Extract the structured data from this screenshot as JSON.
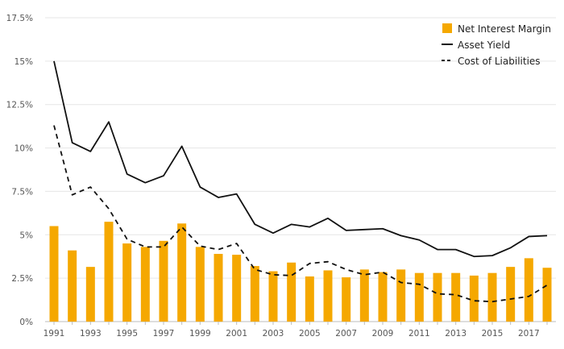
{
  "chart_data": {
    "type": "bar",
    "title": "",
    "xlabel": "",
    "ylabel": "",
    "ylim": [
      0,
      17.5
    ],
    "y_ticks": [
      0,
      2.5,
      5,
      7.5,
      10,
      12.5,
      15,
      17.5
    ],
    "y_tick_labels": [
      "0%",
      "2.5%",
      "5%",
      "7.5%",
      "10%",
      "12.5%",
      "15%",
      "17.5%"
    ],
    "x_tick_labels": [
      "1991",
      "1993",
      "1995",
      "1997",
      "1999",
      "2001",
      "2003",
      "2005",
      "2007",
      "2009",
      "2011",
      "2013",
      "2015",
      "2017"
    ],
    "grid": "horizontal",
    "legend_position": "top-right",
    "categories": [
      1991,
      1992,
      1993,
      1994,
      1995,
      1996,
      1997,
      1998,
      1999,
      2000,
      2001,
      2002,
      2003,
      2004,
      2005,
      2006,
      2007,
      2008,
      2009,
      2010,
      2011,
      2012,
      2013,
      2014,
      2015,
      2016,
      2017,
      2018
    ],
    "series": [
      {
        "name": "Net Interest Margin",
        "type": "bar",
        "color": "#f5a800",
        "values": [
          5.5,
          4.1,
          3.15,
          5.75,
          4.5,
          4.3,
          4.65,
          5.65,
          4.3,
          3.9,
          3.85,
          3.2,
          2.9,
          3.4,
          2.6,
          2.95,
          2.55,
          3.0,
          2.85,
          3.0,
          2.8,
          2.8,
          2.8,
          2.65,
          2.8,
          3.15,
          3.65,
          3.1
        ]
      },
      {
        "name": "Asset Yield",
        "type": "line",
        "style": "solid",
        "color": "#111111",
        "values": [
          15.0,
          10.3,
          9.8,
          11.5,
          8.5,
          8.0,
          8.4,
          10.1,
          7.75,
          7.15,
          7.35,
          5.6,
          5.1,
          5.6,
          5.45,
          5.95,
          5.25,
          5.3,
          5.35,
          4.95,
          4.7,
          4.15,
          4.15,
          3.75,
          3.8,
          4.25,
          4.9,
          4.95
        ]
      },
      {
        "name": "Cost of Liabilities",
        "type": "line",
        "style": "dashed",
        "color": "#111111",
        "values": [
          11.3,
          7.3,
          7.75,
          6.5,
          4.75,
          4.3,
          4.3,
          5.45,
          4.35,
          4.15,
          4.5,
          3.0,
          2.7,
          2.65,
          3.35,
          3.45,
          3.0,
          2.7,
          2.85,
          2.25,
          2.15,
          1.6,
          1.55,
          1.2,
          1.15,
          1.3,
          1.45,
          2.1
        ]
      }
    ]
  }
}
